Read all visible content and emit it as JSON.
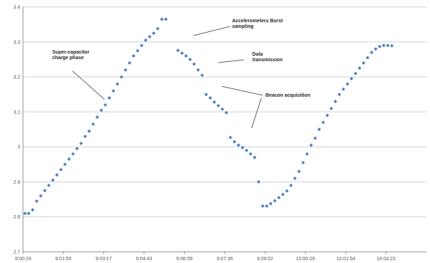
{
  "chart_data": {
    "type": "scatter",
    "title": "",
    "xlabel": "",
    "ylabel": "",
    "ylim": [
      2.7,
      3.4
    ],
    "yticks": [
      "2.7",
      "2.8",
      "2.9",
      "3",
      "3.1",
      "3.2",
      "3.3",
      "3.4"
    ],
    "xticks": [
      "9:00:24",
      "9:01:50",
      "9:03:17",
      "9:04:43",
      "9:06:09",
      "9:07:36",
      "9:09:02",
      "10:00:29",
      "10:01:54",
      "10:03:22"
    ],
    "grid": true,
    "marker_color": "#4f81bd",
    "series": [
      {
        "values": [
          [
            0.05,
            2.81
          ],
          [
            0.14,
            2.81
          ],
          [
            0.24,
            2.82
          ],
          [
            0.34,
            2.845
          ],
          [
            0.44,
            2.86
          ],
          [
            0.54,
            2.875
          ],
          [
            0.64,
            2.89
          ],
          [
            0.74,
            2.905
          ],
          [
            0.84,
            2.92
          ],
          [
            0.94,
            2.935
          ],
          [
            1.04,
            2.95
          ],
          [
            1.14,
            2.965
          ],
          [
            1.24,
            2.98
          ],
          [
            1.34,
            2.995
          ],
          [
            1.44,
            3.01
          ],
          [
            1.54,
            3.03
          ],
          [
            1.64,
            3.045
          ],
          [
            1.74,
            3.065
          ],
          [
            1.84,
            3.085
          ],
          [
            1.94,
            3.105
          ],
          [
            2.04,
            3.12
          ],
          [
            2.14,
            3.14
          ],
          [
            2.24,
            3.16
          ],
          [
            2.34,
            3.18
          ],
          [
            2.44,
            3.2
          ],
          [
            2.54,
            3.22
          ],
          [
            2.64,
            3.24
          ],
          [
            2.74,
            3.26
          ],
          [
            2.84,
            3.275
          ],
          [
            2.94,
            3.29
          ],
          [
            3.04,
            3.305
          ],
          [
            3.14,
            3.315
          ],
          [
            3.24,
            3.325
          ],
          [
            3.34,
            3.338
          ],
          [
            3.44,
            3.365
          ],
          [
            3.54,
            3.365
          ],
          [
            3.84,
            3.276
          ],
          [
            3.94,
            3.268
          ],
          [
            4.04,
            3.26
          ],
          [
            4.14,
            3.25
          ],
          [
            4.24,
            3.237
          ],
          [
            4.34,
            3.22
          ],
          [
            4.44,
            3.205
          ],
          [
            4.54,
            3.15
          ],
          [
            4.64,
            3.14
          ],
          [
            4.74,
            3.128
          ],
          [
            4.84,
            3.118
          ],
          [
            4.94,
            3.108
          ],
          [
            5.04,
            3.098
          ],
          [
            5.14,
            3.027
          ],
          [
            5.24,
            3.015
          ],
          [
            5.34,
            3.005
          ],
          [
            5.44,
            2.998
          ],
          [
            5.54,
            2.99
          ],
          [
            5.64,
            2.98
          ],
          [
            5.74,
            2.97
          ],
          [
            5.84,
            2.9
          ],
          [
            5.94,
            2.831
          ],
          [
            6.04,
            2.831
          ],
          [
            6.14,
            2.838
          ],
          [
            6.24,
            2.846
          ],
          [
            6.34,
            2.855
          ],
          [
            6.44,
            2.864
          ],
          [
            6.54,
            2.874
          ],
          [
            6.64,
            2.89
          ],
          [
            6.74,
            2.91
          ],
          [
            6.84,
            2.93
          ],
          [
            6.94,
            2.955
          ],
          [
            7.04,
            2.98
          ],
          [
            7.14,
            3.005
          ],
          [
            7.24,
            3.025
          ],
          [
            7.34,
            3.05
          ],
          [
            7.44,
            3.07
          ],
          [
            7.54,
            3.09
          ],
          [
            7.64,
            3.11
          ],
          [
            7.74,
            3.13
          ],
          [
            7.84,
            3.15
          ],
          [
            7.94,
            3.165
          ],
          [
            8.04,
            3.18
          ],
          [
            8.14,
            3.195
          ],
          [
            8.24,
            3.21
          ],
          [
            8.34,
            3.225
          ],
          [
            8.44,
            3.24
          ],
          [
            8.54,
            3.255
          ],
          [
            8.64,
            3.27
          ],
          [
            8.74,
            3.28
          ],
          [
            8.84,
            3.287
          ],
          [
            8.94,
            3.29
          ],
          [
            9.04,
            3.29
          ],
          [
            9.14,
            3.289
          ]
        ]
      }
    ],
    "annotations": [
      {
        "lines": [
          "Super-capacitor",
          "charge phase"
        ]
      },
      {
        "lines": [
          "Accelerometers Burst",
          "sampling"
        ]
      },
      {
        "lines": [
          "Data",
          "transmission"
        ]
      },
      {
        "lines": [
          "Beacon acquisition"
        ]
      }
    ]
  }
}
